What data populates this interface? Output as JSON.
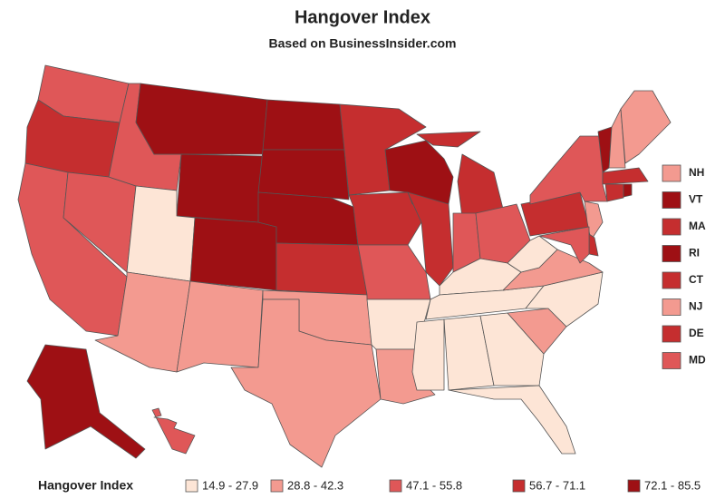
{
  "title": "Hangover Index",
  "subtitle": "Based on BusinessInsider.com",
  "legend": {
    "title": "Hangover Index",
    "bins": [
      {
        "label": "14.9 - 27.9",
        "color": "#fde5d6"
      },
      {
        "label": "28.8 - 42.3",
        "color": "#f39a90"
      },
      {
        "label": "47.1 - 55.8",
        "color": "#df5758"
      },
      {
        "label": "56.7 - 71.1",
        "color": "#c52e2f"
      },
      {
        "label": "72.1 - 85.5",
        "color": "#9e1014"
      }
    ]
  },
  "callouts": [
    {
      "label": "NH",
      "bin": 1
    },
    {
      "label": "VT",
      "bin": 4
    },
    {
      "label": "MA",
      "bin": 3
    },
    {
      "label": "RI",
      "bin": 4
    },
    {
      "label": "CT",
      "bin": 3
    },
    {
      "label": "NJ",
      "bin": 1
    },
    {
      "label": "DE",
      "bin": 3
    },
    {
      "label": "MD",
      "bin": 2
    }
  ],
  "regions": [
    2,
    3,
    2,
    2,
    2,
    4,
    4,
    0,
    1,
    4,
    1,
    4,
    4,
    4,
    3,
    1,
    1,
    3,
    3,
    2,
    0,
    1,
    4,
    3,
    3,
    3,
    2,
    2,
    0,
    0,
    0,
    0,
    0,
    0,
    1,
    0,
    1,
    0,
    3,
    2,
    4,
    1,
    1,
    3,
    3,
    4,
    1,
    3,
    2,
    4,
    2
  ]
}
